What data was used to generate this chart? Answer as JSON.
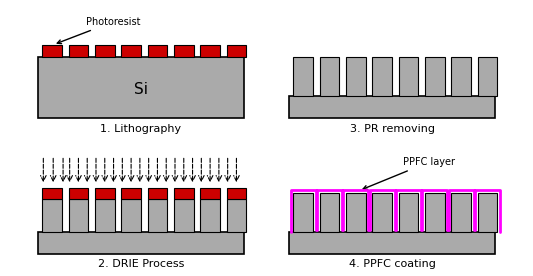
{
  "background_color": "#ffffff",
  "si_color": "#aaaaaa",
  "pr_color": "#cc0000",
  "ppfc_color": "#ff00ff",
  "outline_color": "#000000",
  "panel_labels": [
    "1. Lithography",
    "2. DRIE Process",
    "3. PR removing",
    "4. PPFC coating"
  ],
  "annotations": {
    "photoresist": "Photoresist",
    "ppfc_layer": "PPFC layer",
    "si_label": "Si"
  }
}
